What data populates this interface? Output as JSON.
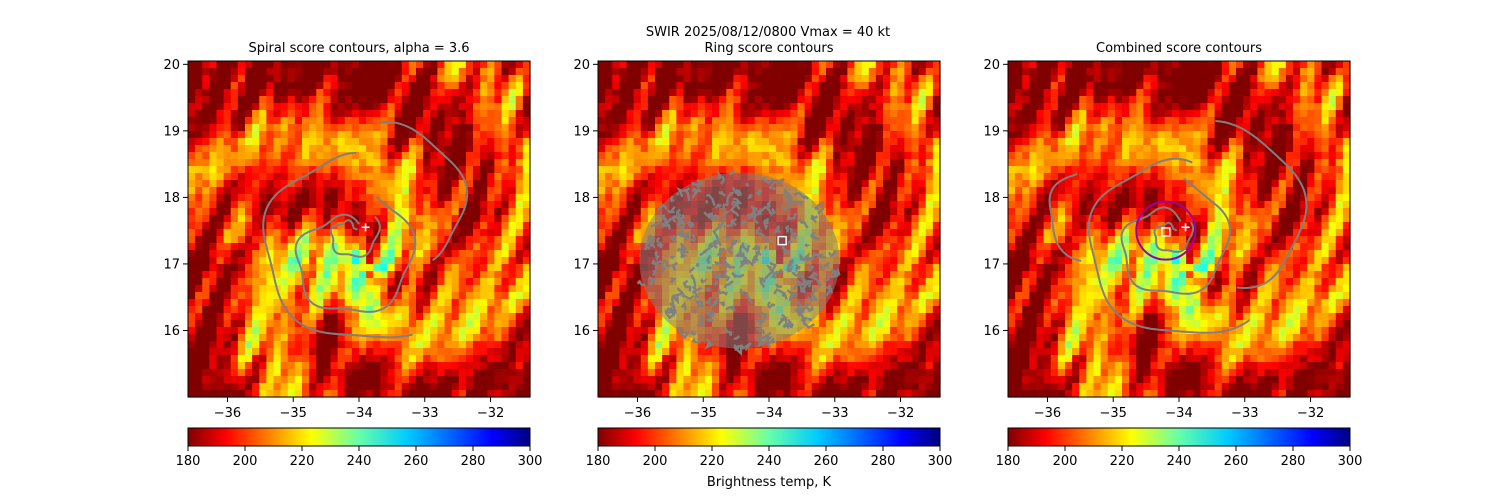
{
  "figure": {
    "suptitle_line1": "SWIR  2025/08/12/0800    Vmax = 40 kt",
    "colorbar_label": "Brightness temp, K"
  },
  "panels": [
    {
      "title": "Spiral score contours, alpha =  3.6",
      "markers": [
        "plus"
      ]
    },
    {
      "title": "Ring score contours",
      "markers": [
        "square"
      ]
    },
    {
      "title": "Combined score contours",
      "markers": [
        "plus",
        "square",
        "circle"
      ]
    }
  ],
  "colors": {
    "contour": "#808080",
    "marker": "#ffffff",
    "fit_circle": "#a000a0"
  },
  "chart_data": {
    "type": "heatmap",
    "x_label": "",
    "y_label": "",
    "xlim": [
      -36.6,
      -31.4
    ],
    "ylim": [
      15.0,
      20.05
    ],
    "x_ticks": [
      -36,
      -35,
      -34,
      -33,
      -32
    ],
    "y_ticks": [
      16,
      17,
      18,
      19,
      20
    ],
    "x_tick_labels": [
      "−36",
      "−35",
      "−34",
      "−33",
      "−32"
    ],
    "y_tick_labels": [
      "16",
      "17",
      "18",
      "19",
      "20"
    ],
    "colorbar": {
      "colormap": "jet_r",
      "min": 180,
      "max": 300,
      "ticks": [
        180,
        200,
        220,
        240,
        260,
        280,
        300
      ],
      "tick_labels": [
        "180",
        "200",
        "220",
        "240",
        "260",
        "280",
        "300"
      ]
    },
    "markers": {
      "spiral_plus": [
        -33.9,
        17.55
      ],
      "ring_square": [
        -33.8,
        17.35
      ],
      "combined_plus": [
        -33.9,
        17.55
      ],
      "combined_square": [
        -34.2,
        17.48
      ]
    },
    "fit_circle": {
      "center": [
        -34.2,
        17.5
      ],
      "radius_deg": 0.45
    }
  }
}
